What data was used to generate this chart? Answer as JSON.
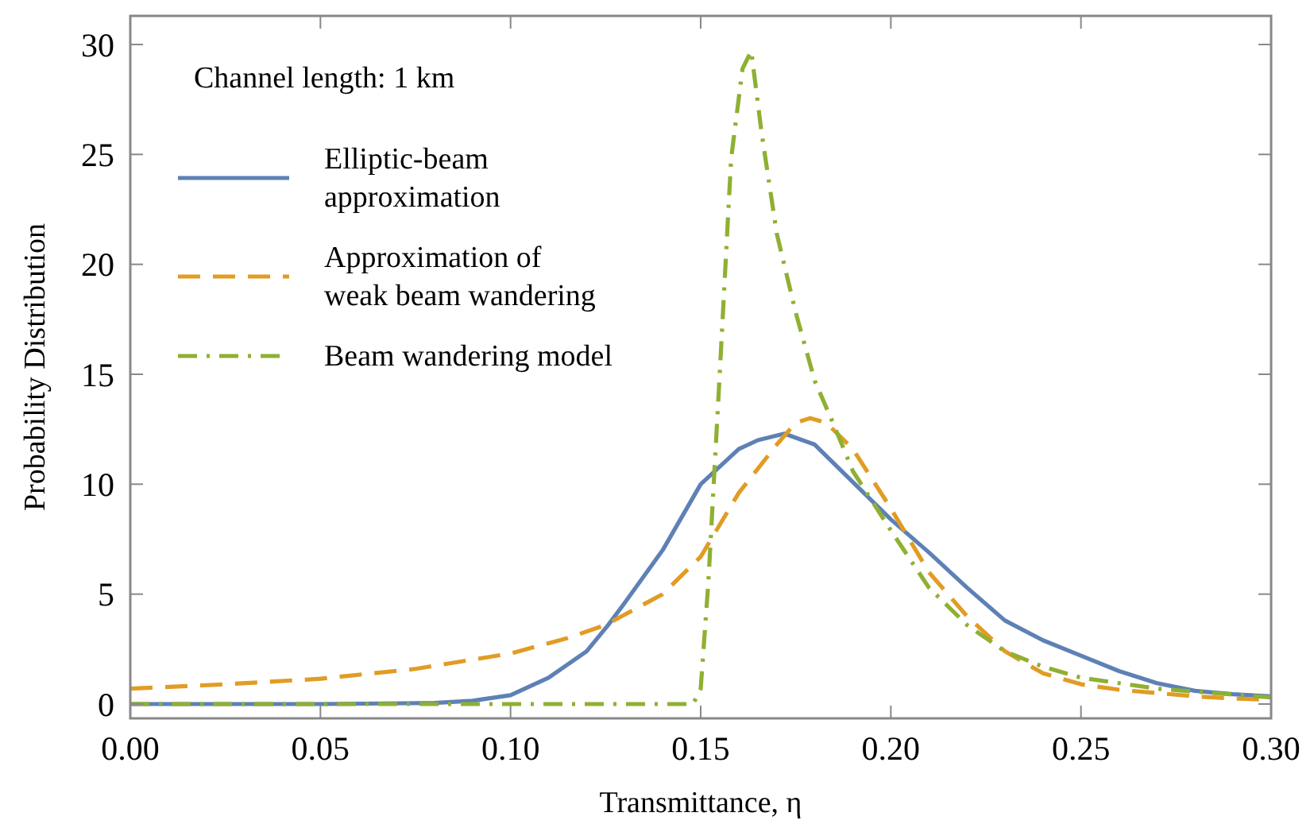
{
  "chart_data": {
    "type": "line",
    "xlabel": "Transmittance, η",
    "ylabel": "Probability Distribution",
    "annotations": [
      "Channel length: 1 km"
    ],
    "xlim": [
      0,
      0.3
    ],
    "ylim": [
      -0.65,
      31.3
    ],
    "xticks": [
      {
        "value": 0,
        "label": "0.00"
      },
      {
        "value": 0.05,
        "label": "0.05"
      },
      {
        "value": 0.1,
        "label": "0.10"
      },
      {
        "value": 0.15,
        "label": "0.15"
      },
      {
        "value": 0.2,
        "label": "0.20"
      },
      {
        "value": 0.25,
        "label": "0.25"
      },
      {
        "value": 0.3,
        "label": "0.30"
      }
    ],
    "yticks": [
      0,
      5,
      10,
      15,
      20,
      25,
      30
    ],
    "grid": false,
    "legend": "top left",
    "marker": "none",
    "series": [
      {
        "name": "Elliptic-beam\napproximation",
        "color": "#5e81b5",
        "line_style": "solid",
        "x": [
          0,
          0.05,
          0.08,
          0.09,
          0.1,
          0.11,
          0.12,
          0.1257,
          0.13,
          0.14,
          0.15,
          0.16,
          0.165,
          0.172,
          0.18,
          0.19,
          0.2,
          0.21,
          0.22,
          0.23,
          0.24,
          0.25,
          0.26,
          0.27,
          0.28,
          0.29,
          0.3
        ],
        "values": [
          0,
          0,
          0.05,
          0.15,
          0.4,
          1.2,
          2.4,
          3.6,
          4.6,
          7.0,
          10.0,
          11.6,
          12.0,
          12.3,
          11.8,
          10.1,
          8.4,
          6.9,
          5.3,
          3.8,
          2.9,
          2.2,
          1.5,
          0.95,
          0.6,
          0.45,
          0.35
        ]
      },
      {
        "name": "Approximation of\nweak beam wandering",
        "color": "#e19c24",
        "line_style": "dashed",
        "x": [
          0,
          0.025,
          0.05,
          0.075,
          0.1,
          0.115,
          0.125,
          0.14,
          0.15,
          0.16,
          0.17,
          0.175,
          0.1788,
          0.183,
          0.19,
          0.2,
          0.21,
          0.22,
          0.23,
          0.24,
          0.25,
          0.26,
          0.27,
          0.28,
          0.29,
          0.3
        ],
        "values": [
          0.7,
          0.9,
          1.15,
          1.6,
          2.3,
          3.0,
          3.6,
          5.0,
          6.7,
          9.6,
          11.8,
          12.8,
          13.0,
          12.8,
          11.6,
          8.9,
          6.0,
          4.0,
          2.4,
          1.4,
          0.9,
          0.65,
          0.5,
          0.35,
          0.25,
          0.2
        ]
      },
      {
        "name": "Beam wandering model",
        "color": "#8fb032",
        "line_style": "dashdot",
        "x": [
          0,
          0.1,
          0.148,
          0.15,
          0.152,
          0.155,
          0.158,
          0.161,
          0.1633,
          0.166,
          0.17,
          0.175,
          0.18,
          0.185,
          0.19,
          0.2,
          0.21,
          0.22,
          0.23,
          0.24,
          0.25,
          0.27,
          0.3
        ],
        "values": [
          0,
          0,
          0,
          0.7,
          5.5,
          15,
          24.8,
          28.9,
          29.7,
          26,
          21.4,
          17.8,
          14.7,
          12.7,
          10.6,
          7.9,
          5.3,
          3.6,
          2.4,
          1.7,
          1.2,
          0.7,
          0.3
        ]
      }
    ]
  }
}
